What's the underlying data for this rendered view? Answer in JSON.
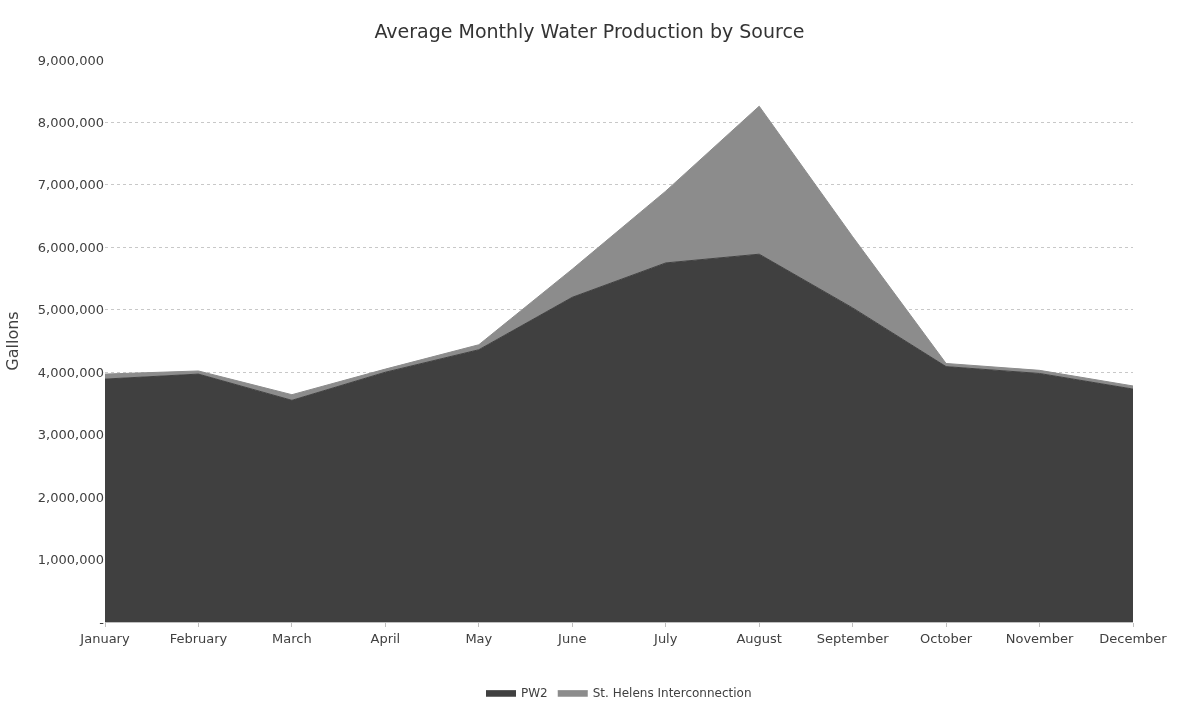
{
  "chart_data": {
    "type": "area",
    "stacked": true,
    "title": "Average Monthly Water Production by Source",
    "ylabel": "Gallons",
    "categories": [
      "January",
      "February",
      "March",
      "April",
      "May",
      "June",
      "July",
      "August",
      "September",
      "October",
      "November",
      "December"
    ],
    "series": [
      {
        "name": "PW2",
        "color": "#404040",
        "values": [
          3890000,
          3970000,
          3550000,
          4000000,
          4360000,
          5200000,
          5750000,
          5890000,
          5030000,
          4090000,
          3980000,
          3730000
        ]
      },
      {
        "name": "St. Helens Interconnection",
        "color": "#8c8c8c",
        "values": [
          80000,
          50000,
          90000,
          50000,
          80000,
          450000,
          1150000,
          2370000,
          1140000,
          50000,
          50000,
          50000
        ]
      }
    ],
    "ylim": [
      0,
      9000000
    ],
    "yticks": [
      {
        "value": 0,
        "label": "-"
      },
      {
        "value": 1000000,
        "label": "1,000,000"
      },
      {
        "value": 2000000,
        "label": "2,000,000"
      },
      {
        "value": 3000000,
        "label": "3,000,000"
      },
      {
        "value": 4000000,
        "label": "4,000,000"
      },
      {
        "value": 5000000,
        "label": "5,000,000"
      },
      {
        "value": 6000000,
        "label": "6,000,000"
      },
      {
        "value": 7000000,
        "label": "7,000,000"
      },
      {
        "value": 8000000,
        "label": "8,000,000"
      },
      {
        "value": 9000000,
        "label": "9,000,000"
      }
    ],
    "grid": "y",
    "legend": "bottom"
  }
}
